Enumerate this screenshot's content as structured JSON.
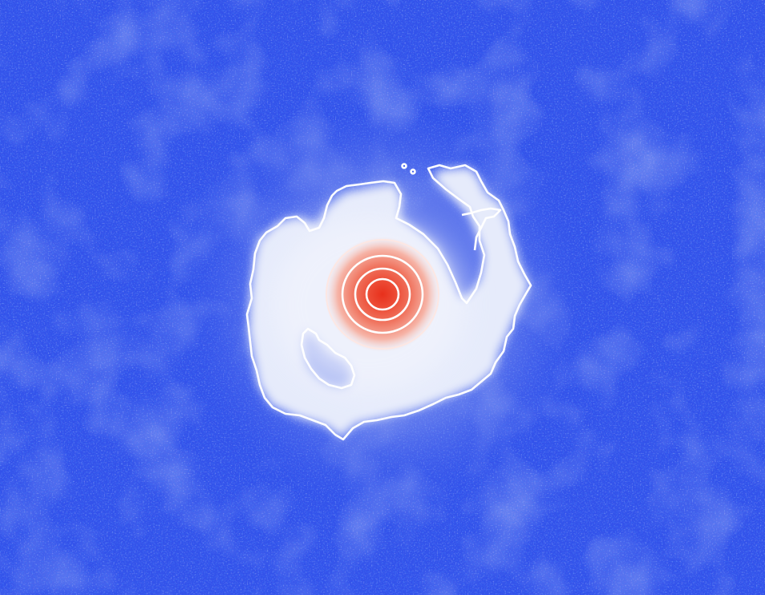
{
  "image": {
    "colors": {
      "background": "#3453ea",
      "noise_dark": "#0b2ee6",
      "noise_light": "#6f86ee",
      "halo": "#cfd7f7",
      "cloud": "#eef1fc",
      "core_inner": "#e8301c",
      "core_outer": "#f7d3cc",
      "contour": "#ffffff"
    }
  }
}
